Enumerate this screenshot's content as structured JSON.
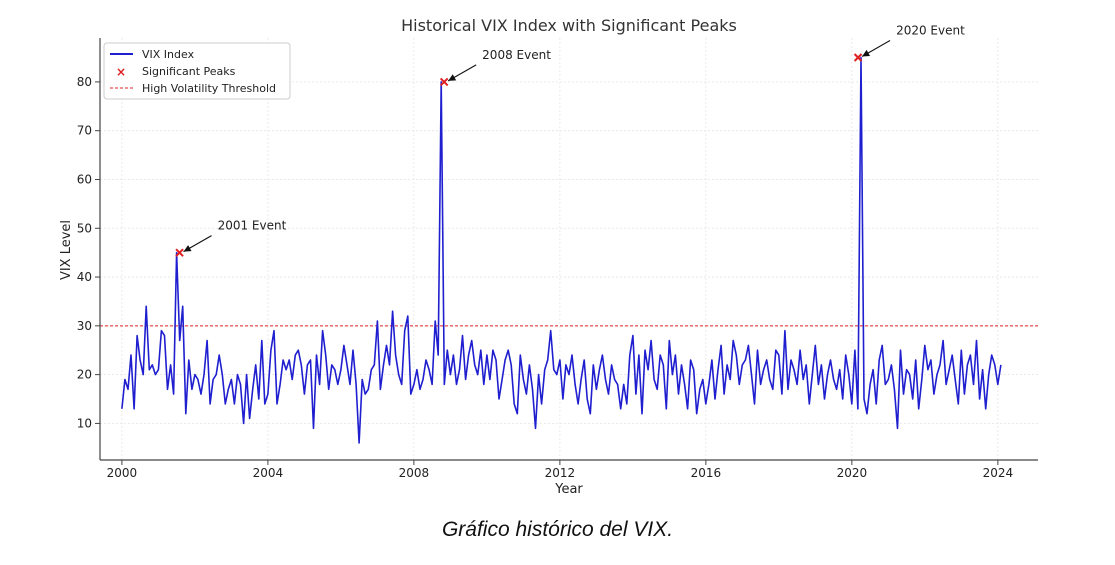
{
  "caption": "Gráfico histórico del VIX.",
  "colors": {
    "line": "#1f1fd0",
    "peak": "#e02020",
    "threshold": "#e02020",
    "axis": "#444444",
    "grid": "#e4e4e4"
  },
  "chart_data": {
    "type": "line",
    "title": "Historical VIX Index with Significant Peaks",
    "xlabel": "Year",
    "ylabel": "VIX Level",
    "xlim": [
      1999.4,
      2025.1
    ],
    "ylim": [
      2.5,
      89
    ],
    "xticks": [
      2000,
      2004,
      2008,
      2012,
      2016,
      2020,
      2024
    ],
    "yticks": [
      10,
      20,
      30,
      40,
      50,
      60,
      70,
      80
    ],
    "grid": true,
    "legend_position": "top-left",
    "series": [
      {
        "name": "VIX Index",
        "start": 2000.0,
        "step_years": 0.08333,
        "values": [
          13,
          19,
          17,
          24,
          13,
          28,
          23,
          20,
          34,
          21,
          22,
          20,
          21,
          29,
          28,
          17,
          22,
          16,
          45,
          27,
          34,
          12,
          23,
          17,
          20,
          19,
          16,
          20,
          27,
          14,
          19,
          20,
          24,
          20,
          14,
          17,
          19,
          14,
          20,
          18,
          10,
          20,
          11,
          17,
          22,
          15,
          27,
          14,
          16,
          25,
          29,
          14,
          18,
          23,
          21,
          23,
          19,
          24,
          25,
          22,
          16,
          22,
          23,
          9,
          24,
          18,
          29,
          24,
          17,
          22,
          21,
          18,
          21,
          26,
          22,
          18,
          25,
          18,
          6,
          19,
          16,
          17,
          21,
          22,
          31,
          17,
          22,
          26,
          22,
          33,
          24,
          20,
          18,
          29,
          32,
          16,
          18,
          21,
          17,
          19,
          23,
          21,
          18,
          31,
          24,
          80,
          18,
          25,
          20,
          24,
          18,
          21,
          28,
          19,
          24,
          27,
          22,
          20,
          25,
          18,
          24,
          19,
          25,
          23,
          15,
          19,
          23,
          25,
          22,
          14,
          12,
          24,
          19,
          16,
          22,
          17,
          9,
          20,
          14,
          21,
          23,
          29,
          21,
          20,
          23,
          15,
          22,
          20,
          24,
          18,
          14,
          19,
          23,
          15,
          12,
          22,
          17,
          21,
          24,
          19,
          16,
          22,
          19,
          18,
          13,
          18,
          14,
          24,
          28,
          16,
          24,
          12,
          25,
          21,
          27,
          19,
          17,
          24,
          22,
          13,
          27,
          20,
          24,
          16,
          22,
          18,
          13,
          23,
          21,
          12,
          17,
          19,
          14,
          18,
          23,
          15,
          21,
          26,
          16,
          22,
          19,
          27,
          24,
          18,
          22,
          23,
          26,
          20,
          14,
          25,
          18,
          21,
          23,
          19,
          17,
          25,
          24,
          16,
          29,
          17,
          23,
          21,
          18,
          25,
          19,
          22,
          14,
          20,
          26,
          18,
          22,
          15,
          20,
          23,
          19,
          17,
          21,
          15,
          24,
          20,
          14,
          25,
          13,
          85,
          15,
          12,
          18,
          21,
          14,
          23,
          26,
          18,
          19,
          22,
          17,
          9,
          25,
          16,
          21,
          20,
          15,
          23,
          13,
          19,
          26,
          21,
          23,
          16,
          20,
          22,
          27,
          18,
          21,
          24,
          19,
          14,
          25,
          16,
          22,
          24,
          18,
          27,
          15,
          21,
          13,
          20,
          24,
          22,
          18,
          22
        ]
      }
    ],
    "peaks": [
      {
        "name": "Significant Peaks",
        "x": 2001.58,
        "y": 45,
        "label": "2001 Event"
      },
      {
        "x": 2008.83,
        "y": 80,
        "label": "2008 Event"
      },
      {
        "x": 2020.17,
        "y": 85,
        "label": "2020 Event"
      }
    ],
    "threshold": {
      "name": "High Volatility Threshold",
      "y": 30
    }
  }
}
